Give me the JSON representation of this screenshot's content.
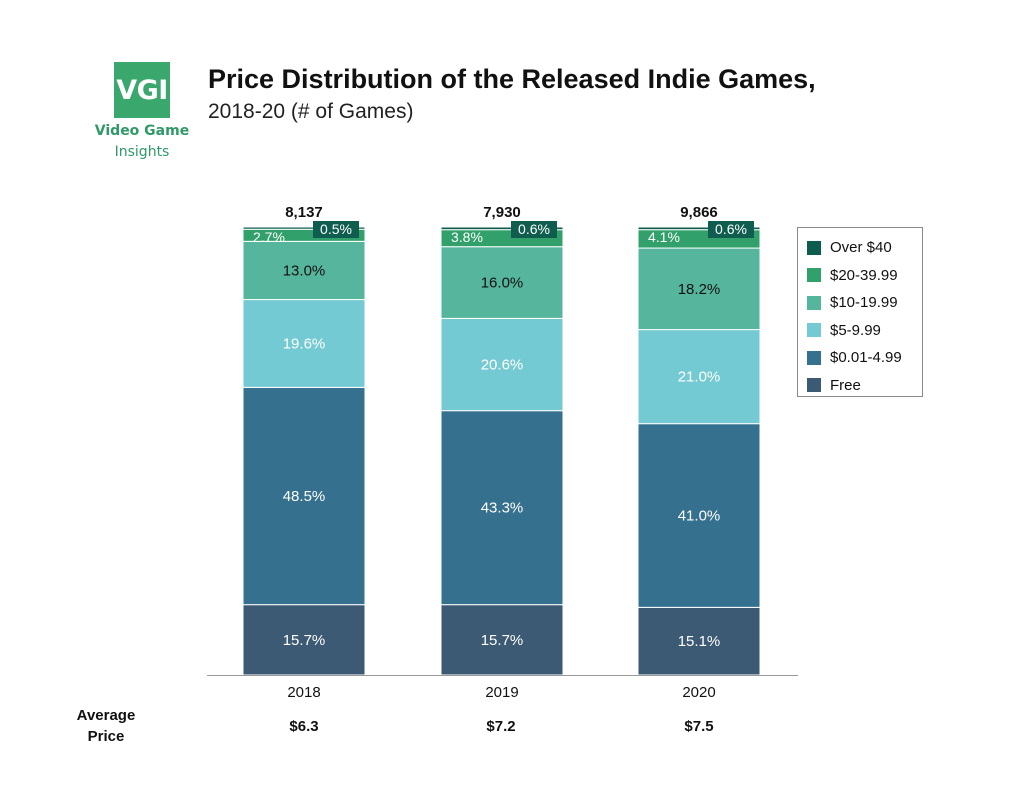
{
  "logo": {
    "text": "VGI",
    "line1": "Video Game",
    "line2": "Insights",
    "color": "#3aa76d"
  },
  "chart_data": {
    "type": "bar",
    "stacked": true,
    "normalized": true,
    "title": "Price Distribution of the Released Indie Games,",
    "subtitle": "2018-20 (# of Games)",
    "categories": [
      "2018",
      "2019",
      "2020"
    ],
    "totals": [
      "8,137",
      "7,930",
      "9,866"
    ],
    "series": [
      {
        "name": "Free",
        "color": "#3c5a73",
        "values": [
          15.7,
          15.7,
          15.1
        ]
      },
      {
        "name": "$0.01-4.99",
        "color": "#35718e",
        "values": [
          48.5,
          43.3,
          41.0
        ]
      },
      {
        "name": "$5-9.99",
        "color": "#74cad3",
        "values": [
          19.6,
          20.6,
          21.0
        ]
      },
      {
        "name": "$10-19.99",
        "color": "#56b59d",
        "values": [
          13.0,
          16.0,
          18.2
        ]
      },
      {
        "name": "$20-39.99",
        "color": "#32a06a",
        "values": [
          2.7,
          3.8,
          4.1
        ]
      },
      {
        "name": "Over $40",
        "color": "#0f5d4e",
        "values": [
          0.5,
          0.6,
          0.6
        ]
      }
    ],
    "value_labels": [
      [
        "15.7%",
        "48.5%",
        "19.6%",
        "13.0%",
        "2.7%",
        "0.5%"
      ],
      [
        "15.7%",
        "43.3%",
        "20.6%",
        "16.0%",
        "3.8%",
        "0.6%"
      ],
      [
        "15.1%",
        "41.0%",
        "21.0%",
        "18.2%",
        "4.1%",
        "0.6%"
      ]
    ],
    "legend_position": "right",
    "grid": false,
    "ylim": [
      0,
      100
    ]
  },
  "average_price": {
    "label_line1": "Average",
    "label_line2": "Price",
    "values": [
      "$6.3",
      "$7.2",
      "$7.5"
    ]
  }
}
